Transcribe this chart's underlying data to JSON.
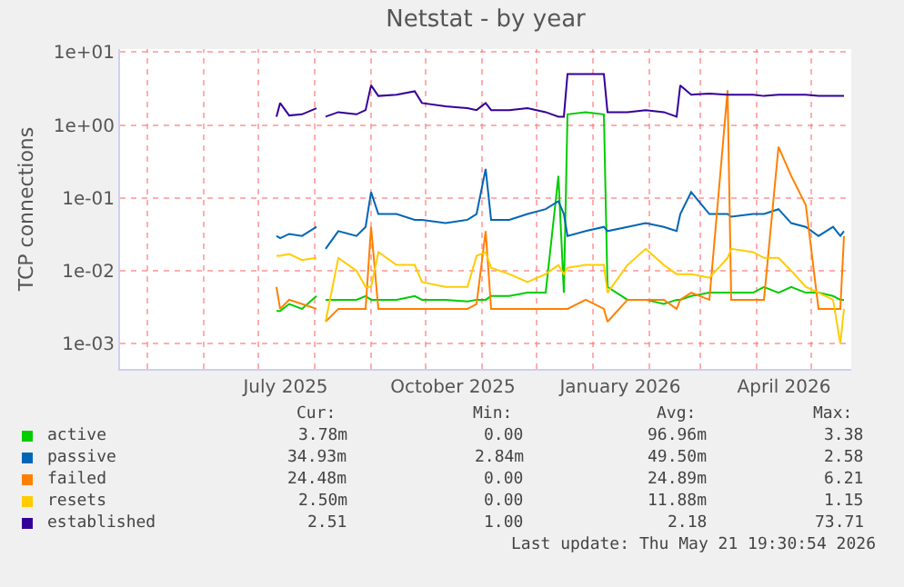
{
  "chart_data": {
    "type": "line",
    "title": "Netstat - by year",
    "ylabel": "TCP connections",
    "x": [
      "2025-07-11",
      "2025-07-13",
      "2025-07-18",
      "2025-07-25",
      "2025-08-02",
      "2025-08-05",
      "2025-08-07",
      "2025-08-14",
      "2025-08-24",
      "2025-08-29",
      "2025-09-01",
      "2025-09-05",
      "2025-09-15",
      "2025-09-25",
      "2025-09-29",
      "2025-10-12",
      "2025-10-24",
      "2025-10-29",
      "2025-11-03",
      "2025-11-06",
      "2025-11-16",
      "2025-11-26",
      "2025-12-06",
      "2025-12-13",
      "2025-12-16",
      "2025-12-18",
      "2025-12-28",
      "2026-01-07",
      "2026-01-09",
      "2026-01-20",
      "2026-01-30",
      "2026-02-09",
      "2026-02-16",
      "2026-02-18",
      "2026-02-24",
      "2026-03-06",
      "2026-03-16",
      "2026-03-18",
      "2026-03-30",
      "2026-04-05",
      "2026-04-13",
      "2026-04-20",
      "2026-04-28",
      "2026-05-05",
      "2026-05-13",
      "2026-05-17",
      "2026-05-19"
    ],
    "series": [
      {
        "name": "active",
        "color": "#00cc00",
        "values": [
          0.0028,
          0.0028,
          0.0035,
          0.003,
          0.0045,
          null,
          0.004,
          0.004,
          0.004,
          0.0045,
          0.004,
          0.004,
          0.004,
          0.0045,
          0.004,
          0.004,
          0.0038,
          0.004,
          0.004,
          0.0045,
          0.0045,
          0.005,
          0.005,
          0.2,
          0.005,
          1.4,
          1.5,
          1.4,
          0.006,
          0.004,
          0.004,
          0.0035,
          0.004,
          0.004,
          0.0045,
          0.005,
          0.005,
          0.005,
          0.005,
          0.006,
          0.005,
          0.006,
          0.005,
          0.005,
          0.0045,
          0.004,
          0.004
        ]
      },
      {
        "name": "passive",
        "color": "#0066b3",
        "values": [
          0.03,
          0.028,
          0.032,
          0.03,
          0.04,
          null,
          0.02,
          0.035,
          0.03,
          0.04,
          0.12,
          0.06,
          0.06,
          0.05,
          0.05,
          0.045,
          0.05,
          0.06,
          0.25,
          0.05,
          0.05,
          0.06,
          0.07,
          0.09,
          0.06,
          0.03,
          0.035,
          0.04,
          0.035,
          0.04,
          0.045,
          0.04,
          0.035,
          0.06,
          0.12,
          0.06,
          0.06,
          0.055,
          0.06,
          0.06,
          0.07,
          0.045,
          0.04,
          0.03,
          0.04,
          0.03,
          0.035
        ]
      },
      {
        "name": "failed",
        "color": "#ff8000",
        "values": [
          0.006,
          0.003,
          0.004,
          0.0035,
          0.003,
          null,
          0.002,
          0.003,
          0.003,
          0.003,
          0.04,
          0.003,
          0.003,
          0.003,
          0.003,
          0.003,
          0.003,
          0.0035,
          0.035,
          0.003,
          0.003,
          0.003,
          0.003,
          0.003,
          0.003,
          0.003,
          0.004,
          0.003,
          0.002,
          0.004,
          0.004,
          0.004,
          0.003,
          0.004,
          0.005,
          0.004,
          3,
          0.004,
          0.004,
          0.004,
          0.5,
          0.2,
          0.08,
          0.003,
          0.003,
          0.003,
          0.03
        ]
      },
      {
        "name": "resets",
        "color": "#ffcc00",
        "values": [
          0.016,
          0.016,
          0.017,
          0.014,
          0.015,
          null,
          0.002,
          0.015,
          0.01,
          0.006,
          0.006,
          0.018,
          0.012,
          0.012,
          0.007,
          0.006,
          0.006,
          0.016,
          0.018,
          0.011,
          0.009,
          0.007,
          0.009,
          0.012,
          0.009,
          0.011,
          0.012,
          0.012,
          0.005,
          0.012,
          0.02,
          0.012,
          0.009,
          0.009,
          0.009,
          0.008,
          0.015,
          0.02,
          0.018,
          0.015,
          0.015,
          0.01,
          0.006,
          0.005,
          0.004,
          0.001,
          0.003
        ]
      },
      {
        "name": "established",
        "color": "#330099",
        "values": [
          1.3,
          2.0,
          1.35,
          1.4,
          1.7,
          null,
          1.3,
          1.5,
          1.4,
          1.6,
          3.5,
          2.5,
          2.6,
          2.9,
          2.0,
          1.8,
          1.7,
          1.6,
          2.0,
          1.6,
          1.6,
          1.7,
          1.5,
          1.3,
          1.3,
          5.0,
          5.0,
          5.0,
          1.5,
          1.5,
          1.6,
          1.5,
          1.3,
          3.5,
          2.6,
          2.7,
          2.6,
          2.6,
          2.6,
          2.5,
          2.6,
          2.6,
          2.6,
          2.5,
          2.5,
          2.5,
          2.5
        ]
      }
    ],
    "log": "y",
    "ylim": [
      0.00045,
      11
    ],
    "yticks": [
      {
        "value": 0.001,
        "label": "1e-03"
      },
      {
        "value": 0.01,
        "label": "1e-02"
      },
      {
        "value": 0.1,
        "label": "1e-01"
      },
      {
        "value": 1,
        "label": "1e+00"
      },
      {
        "value": 10,
        "label": "1e+01"
      }
    ],
    "xlim": [
      "2025-04-16",
      "2026-05-23"
    ],
    "xticks": [
      {
        "value": "2025-05-01",
        "label": null
      },
      {
        "value": "2025-06-01",
        "label": null
      },
      {
        "value": "2025-07-01",
        "label": null
      },
      {
        "value": "2025-08-01",
        "label": null
      },
      {
        "value": "2025-09-01",
        "label": null
      },
      {
        "value": "2025-10-01",
        "label": null
      },
      {
        "value": "2025-11-01",
        "label": null
      },
      {
        "value": "2025-12-01",
        "label": null
      },
      {
        "value": "2026-01-01",
        "label": null
      },
      {
        "value": "2026-02-01",
        "label": null
      },
      {
        "value": "2026-03-01",
        "label": null
      },
      {
        "value": "2026-04-01",
        "label": null
      },
      {
        "value": "2026-05-01",
        "label": null
      },
      {
        "value": "2025-07-16",
        "label": "July 2025"
      },
      {
        "value": "2025-10-16",
        "label": "October 2025"
      },
      {
        "value": "2026-01-16",
        "label": "January 2026"
      },
      {
        "value": "2026-04-16",
        "label": "April 2026"
      }
    ],
    "grid": true,
    "legend": "bottom left",
    "marker": "none",
    "line_style": "solid",
    "annotations": [
      "Cur:",
      "Min:",
      "Avg:",
      "Max:",
      "3.78m",
      "0.00",
      "96.96m",
      "3.38",
      "34.93m",
      "2.84m",
      "49.50m",
      "2.58",
      "24.48m",
      "0.00",
      "24.89m",
      "6.21",
      "2.50m",
      "0.00",
      "11.88m",
      "1.15",
      "2.51",
      "1.00",
      "2.18",
      "73.71",
      "Last update: Thu May 21 19:30:54 2026"
    ]
  }
}
